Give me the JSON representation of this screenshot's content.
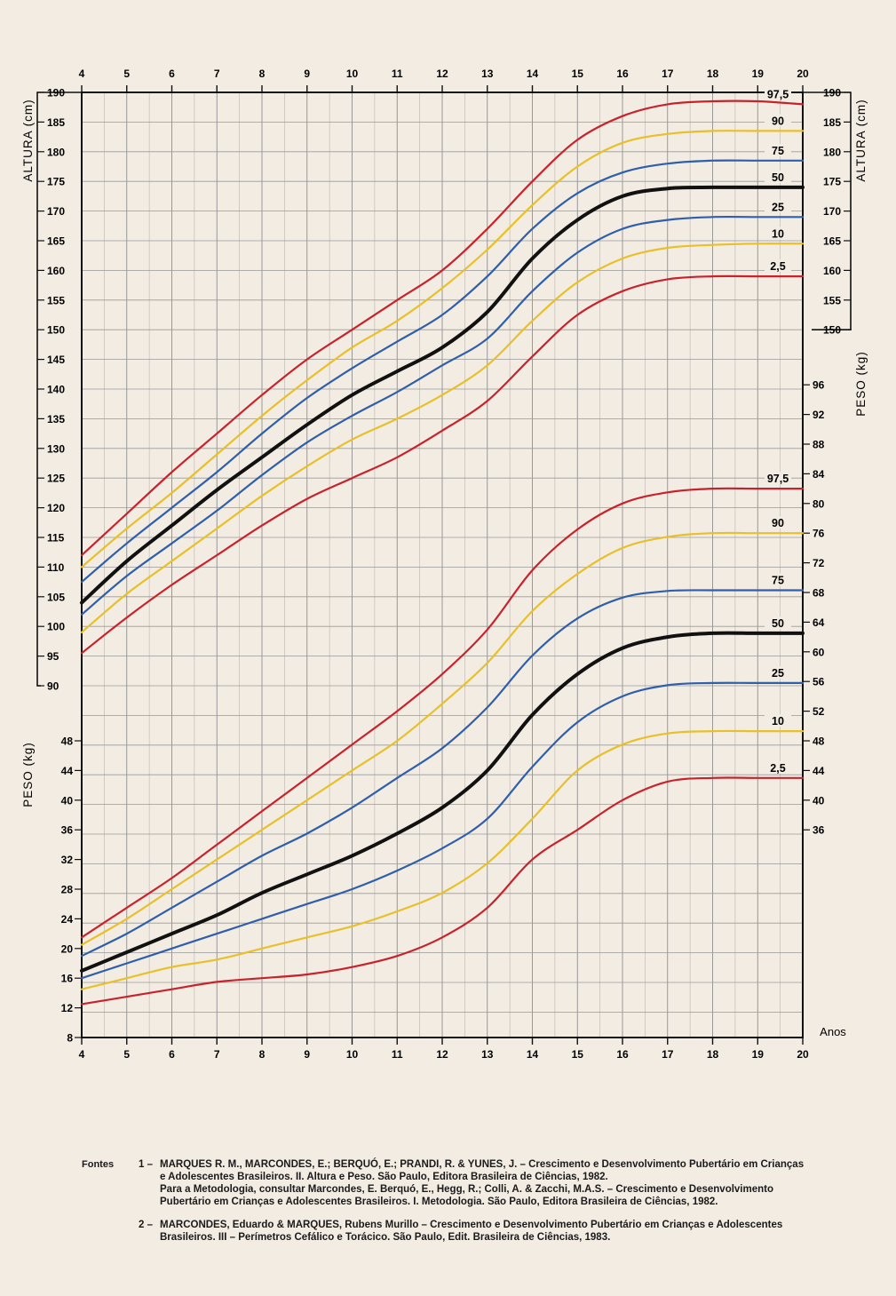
{
  "chart_data": {
    "type": "line",
    "x_unit_label": "Anos",
    "x_ticks": [
      4,
      5,
      6,
      7,
      8,
      9,
      10,
      11,
      12,
      13,
      14,
      15,
      16,
      17,
      18,
      19,
      20
    ],
    "xlim": [
      4,
      20
    ],
    "grid": true,
    "height_panel": {
      "label_left": "ALTURA (cm)",
      "label_right": "ALTURA (cm)",
      "ylim": [
        90,
        190
      ],
      "left_ticks": [
        90,
        95,
        100,
        105,
        110,
        115,
        120,
        125,
        130,
        135,
        140,
        145,
        150,
        155,
        160,
        165,
        170,
        175,
        180,
        185,
        190
      ],
      "right_ticks": [
        150,
        155,
        160,
        165,
        170,
        175,
        180,
        185,
        190
      ],
      "percentile_labels": [
        "97,5",
        "90",
        "75",
        "50",
        "25",
        "10",
        "2,5"
      ],
      "series": [
        {
          "name": "97,5",
          "color": "#c8232c",
          "x": [
            4,
            5,
            6,
            7,
            8,
            9,
            10,
            11,
            12,
            13,
            14,
            15,
            16,
            17,
            18,
            19,
            20
          ],
          "y": [
            112,
            119,
            126,
            132.5,
            139,
            145,
            150,
            155,
            160,
            167,
            175,
            182,
            186,
            188,
            188.5,
            188.5,
            188
          ]
        },
        {
          "name": "90",
          "color": "#e8c02a",
          "x": [
            4,
            5,
            6,
            7,
            8,
            9,
            10,
            11,
            12,
            13,
            14,
            15,
            16,
            17,
            18,
            19,
            20
          ],
          "y": [
            110,
            116.5,
            122.5,
            129,
            135.5,
            141.5,
            147,
            151.5,
            157,
            163.5,
            171,
            177.5,
            181.5,
            183,
            183.5,
            183.5,
            183.5
          ]
        },
        {
          "name": "75",
          "color": "#2f5faa",
          "x": [
            4,
            5,
            6,
            7,
            8,
            9,
            10,
            11,
            12,
            13,
            14,
            15,
            16,
            17,
            18,
            19,
            20
          ],
          "y": [
            107.5,
            114,
            120,
            126,
            132.5,
            138.5,
            143.5,
            148,
            152.5,
            159,
            167,
            173,
            176.5,
            178,
            178.5,
            178.5,
            178.5
          ]
        },
        {
          "name": "50",
          "color": "#111111",
          "x": [
            4,
            5,
            6,
            7,
            8,
            9,
            10,
            11,
            12,
            13,
            14,
            15,
            16,
            17,
            18,
            19,
            20
          ],
          "y": [
            104,
            111,
            117,
            123,
            128.5,
            134,
            139,
            143,
            147,
            153,
            162,
            168.5,
            172.5,
            173.8,
            174,
            174,
            174
          ]
        },
        {
          "name": "25",
          "color": "#2f5faa",
          "x": [
            4,
            5,
            6,
            7,
            8,
            9,
            10,
            11,
            12,
            13,
            14,
            15,
            16,
            17,
            18,
            19,
            20
          ],
          "y": [
            102,
            108.5,
            114,
            119.5,
            125.5,
            131,
            135.5,
            139.5,
            144,
            148.5,
            156.5,
            163,
            167,
            168.5,
            169,
            169,
            169
          ]
        },
        {
          "name": "10",
          "color": "#e8c02a",
          "x": [
            4,
            5,
            6,
            7,
            8,
            9,
            10,
            11,
            12,
            13,
            14,
            15,
            16,
            17,
            18,
            19,
            20
          ],
          "y": [
            99,
            105.5,
            111,
            116.5,
            122,
            127,
            131.5,
            135,
            139,
            144,
            151.5,
            158,
            162,
            163.8,
            164.3,
            164.5,
            164.5
          ]
        },
        {
          "name": "2,5",
          "color": "#c8232c",
          "x": [
            4,
            5,
            6,
            7,
            8,
            9,
            10,
            11,
            12,
            13,
            14,
            15,
            16,
            17,
            18,
            19,
            20
          ],
          "y": [
            95.5,
            101.5,
            107,
            112,
            117,
            121.5,
            125,
            128.5,
            133,
            138,
            145.5,
            152.5,
            156.5,
            158.5,
            159,
            159,
            159
          ]
        }
      ]
    },
    "weight_panel": {
      "label_left": "PESO (kg)",
      "label_right": "PESO (kg)",
      "ylim": [
        8,
        48
      ],
      "left_ticks": [
        8,
        12,
        16,
        20,
        24,
        28,
        32,
        36,
        40,
        44,
        48
      ],
      "right_ticks": [
        36,
        40,
        44,
        48,
        52,
        56,
        60,
        64,
        68,
        72,
        76,
        80,
        84,
        88,
        92,
        96
      ],
      "percentile_labels": [
        "97,5",
        "90",
        "75",
        "50",
        "25",
        "10",
        "2,5"
      ],
      "series": [
        {
          "name": "97,5",
          "color": "#c8232c",
          "x": [
            4,
            5,
            6,
            7,
            8,
            9,
            10,
            11,
            12,
            13,
            14,
            15,
            16,
            17,
            18,
            19,
            20
          ],
          "y": [
            21.5,
            25.5,
            29.5,
            34,
            38.5,
            43,
            47.5,
            52,
            57,
            63,
            71,
            76.5,
            80,
            81.5,
            82,
            82,
            82
          ]
        },
        {
          "name": "90",
          "color": "#e8c02a",
          "x": [
            4,
            5,
            6,
            7,
            8,
            9,
            10,
            11,
            12,
            13,
            14,
            15,
            16,
            17,
            18,
            19,
            20
          ],
          "y": [
            20.5,
            24,
            28,
            32,
            36,
            40,
            44,
            48,
            53,
            58.5,
            65.5,
            70.5,
            74,
            75.5,
            76,
            76,
            76
          ]
        },
        {
          "name": "75",
          "color": "#2f5faa",
          "x": [
            4,
            5,
            6,
            7,
            8,
            9,
            10,
            11,
            12,
            13,
            14,
            15,
            16,
            17,
            18,
            19,
            20
          ],
          "y": [
            19,
            22,
            25.5,
            29,
            32.5,
            35.5,
            39,
            43,
            47,
            52.5,
            59.5,
            64.5,
            67.3,
            68.2,
            68.3,
            68.3,
            68.3
          ]
        },
        {
          "name": "50",
          "color": "#111111",
          "x": [
            4,
            5,
            6,
            7,
            8,
            9,
            10,
            11,
            12,
            13,
            14,
            15,
            16,
            17,
            18,
            19,
            20
          ],
          "y": [
            17,
            19.5,
            22,
            24.5,
            27.5,
            30,
            32.5,
            35.5,
            39,
            44,
            51.5,
            57,
            60.5,
            62,
            62.5,
            62.5,
            62.5
          ]
        },
        {
          "name": "25",
          "color": "#2f5faa",
          "x": [
            4,
            5,
            6,
            7,
            8,
            9,
            10,
            11,
            12,
            13,
            14,
            15,
            16,
            17,
            18,
            19,
            20
          ],
          "y": [
            16,
            18,
            20,
            22,
            24,
            26,
            28,
            30.5,
            33.5,
            37.5,
            44.5,
            50.5,
            54,
            55.5,
            55.8,
            55.8,
            55.8
          ]
        },
        {
          "name": "10",
          "color": "#e8c02a",
          "x": [
            4,
            5,
            6,
            7,
            8,
            9,
            10,
            11,
            12,
            13,
            14,
            15,
            16,
            17,
            18,
            19,
            20
          ],
          "y": [
            14.5,
            16,
            17.5,
            18.5,
            20,
            21.5,
            23,
            25,
            27.5,
            31.5,
            37.5,
            44,
            47.5,
            49,
            49.3,
            49.3,
            49.3
          ]
        },
        {
          "name": "2,5",
          "color": "#c8232c",
          "x": [
            4,
            5,
            6,
            7,
            8,
            9,
            10,
            11,
            12,
            13,
            14,
            15,
            16,
            17,
            18,
            19,
            20
          ],
          "y": [
            12.5,
            13.5,
            14.5,
            15.5,
            16,
            16.5,
            17.5,
            19,
            21.5,
            25.5,
            32,
            36,
            40,
            42.5,
            43,
            43,
            43
          ]
        }
      ]
    }
  },
  "sources": {
    "heading": "Fontes",
    "items": [
      {
        "num": "1 –",
        "text": "MARQUES R. M., MARCONDES, E.; BERQUÓ, E.; PRANDI, R. & YUNES, J. – Crescimento e Desenvolvimento Pubertário em Crianças e Adolescentes Brasileiros. II. Altura e Peso. São Paulo, Editora Brasileira de Ciências, 1982.",
        "note": "Para a Metodologia, consultar Marcondes, E. Berquó, E., Hegg, R.; Colli, A. & Zacchi, M.A.S. – Crescimento e Desenvolvimento Pubertário em Crianças e Adolescentes Brasileiros. I. Metodologia. São Paulo, Editora Brasileira de Ciências, 1982."
      },
      {
        "num": "2 –",
        "text": "MARCONDES, Eduardo & MARQUES, Rubens Murillo – Crescimento e Desenvolvimento Pubertário em Crianças e Adolescentes Brasileiros. III – Perímetros Cefálico e Torácico. São Paulo, Edit. Brasileira de Ciências, 1983."
      }
    ]
  }
}
